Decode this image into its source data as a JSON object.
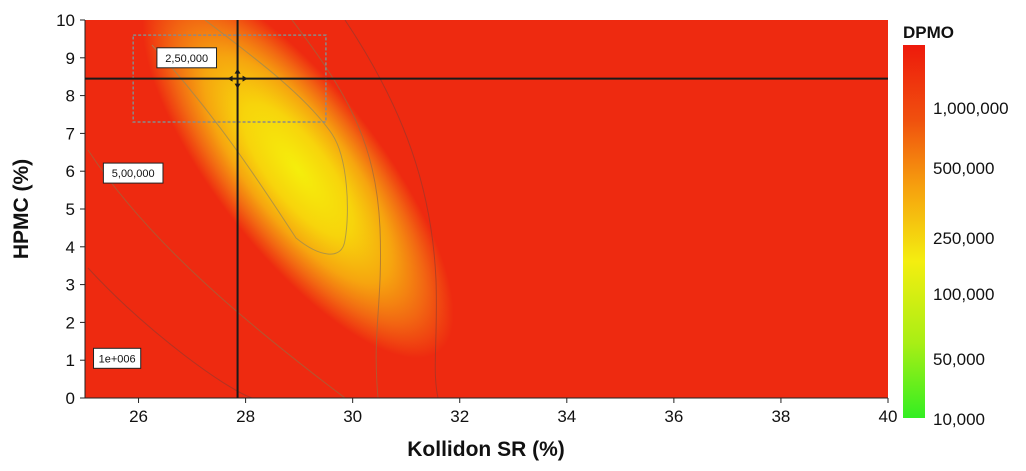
{
  "chart_data": {
    "type": "heatmap",
    "subtype": "contour",
    "xlabel": "Kollidon SR (%)",
    "ylabel": "HPMC (%)",
    "xlim": [
      25,
      40
    ],
    "ylim": [
      0,
      10
    ],
    "x_ticks": [
      "26",
      "28",
      "30",
      "32",
      "34",
      "36",
      "38",
      "40"
    ],
    "y_ticks": [
      "0",
      "1",
      "2",
      "3",
      "4",
      "5",
      "6",
      "7",
      "8",
      "9",
      "10"
    ],
    "colorbar": {
      "title": "DPMO",
      "labels": [
        "1,000,000",
        "500,000",
        "250,000",
        "100,000",
        "50,000",
        "10,000"
      ],
      "low_color": "#33ee22",
      "mid_color": "#f4ee10",
      "high_color": "#ee1a0c"
    },
    "contour_labels": [
      "2,50,000",
      "5,00,000",
      "1e+006"
    ],
    "optimum": {
      "x": 27.85,
      "y": 8.45
    },
    "design_space": {
      "x": [
        25.9,
        29.5
      ],
      "y": [
        7.3,
        9.6
      ]
    }
  }
}
